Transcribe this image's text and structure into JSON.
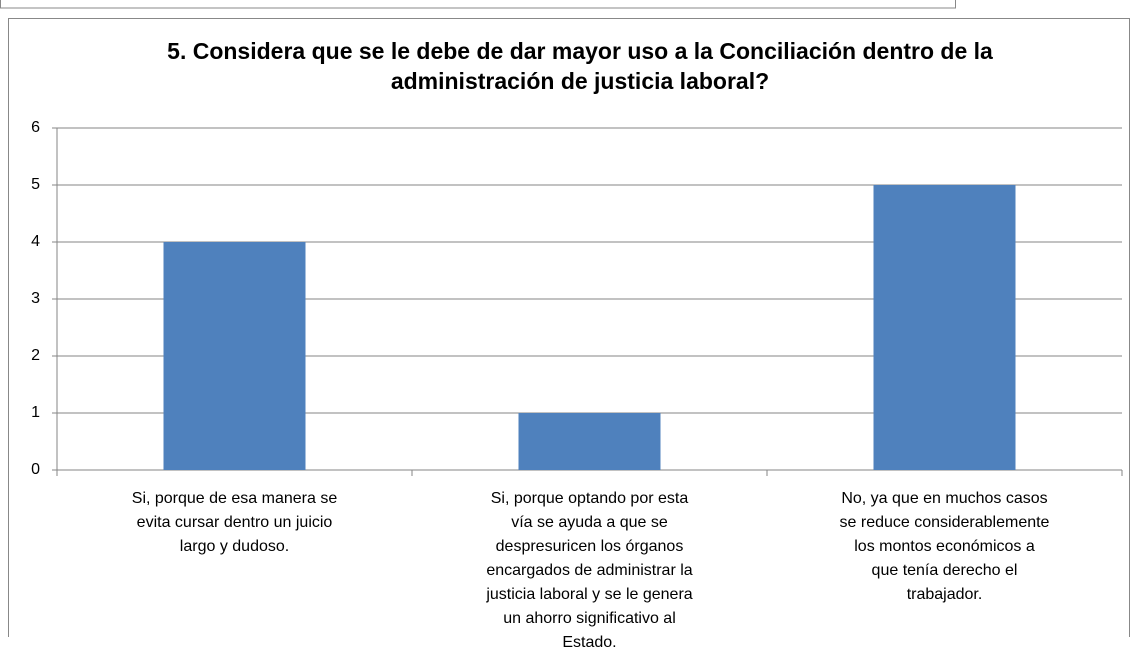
{
  "chart_data": {
    "type": "bar",
    "title": "5. Considera que se le debe de dar mayor uso a la Conciliación dentro de la administración de justicia laboral?",
    "categories": [
      "Si, porque de esa manera se evita cursar dentro un juicio largo y dudoso.",
      "Si, porque optando por esta vía se ayuda a que se despresuricen los órganos encargados de administrar la justicia laboral y se le genera un ahorro significativo al Estado.",
      "No, ya que en muchos casos se reduce considerablemente los montos económicos a que tenía derecho el trabajador."
    ],
    "values": [
      4,
      1,
      5
    ],
    "color": "#4f81bd",
    "ylim": [
      0,
      6
    ],
    "yticks": [
      0,
      1,
      2,
      3,
      4,
      5,
      6
    ],
    "grid": true
  }
}
